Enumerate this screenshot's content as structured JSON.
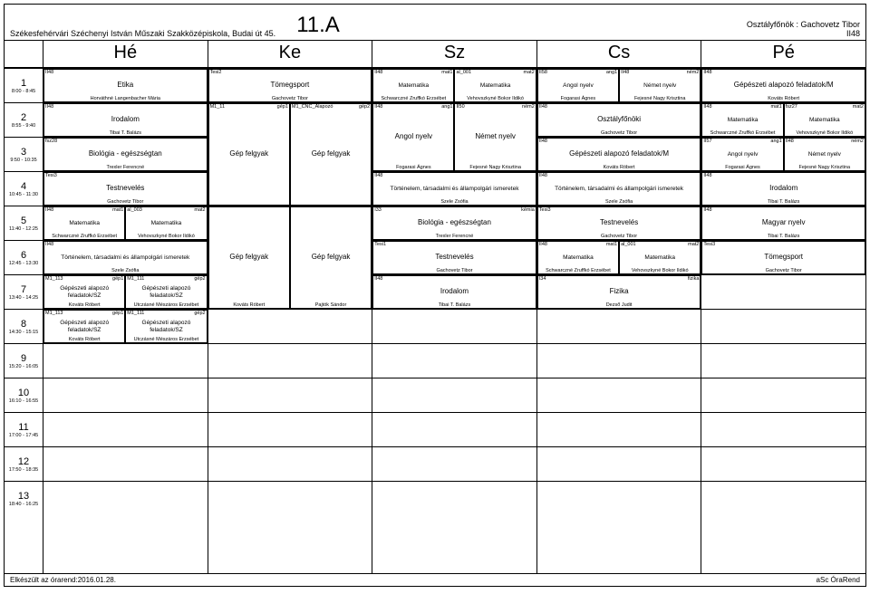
{
  "meta": {
    "school": "Székesfehérvári Széchenyi István Műszaki Szakközépiskola, Budai út 45.",
    "class_title": "11.A",
    "form_teacher_lbl": "Osztályfőnök :",
    "form_teacher": "Gachovetz Tibor",
    "form_room": "II48",
    "footer_left": "Elkészült az órarend:2016.01.28.",
    "footer_right": "aSc ÓraRend"
  },
  "days": [
    "Hé",
    "Ke",
    "Sz",
    "Cs",
    "Pé"
  ],
  "periods": [
    {
      "n": "1",
      "t": "8:00 - 8:45"
    },
    {
      "n": "2",
      "t": "8:55 - 9:40"
    },
    {
      "n": "3",
      "t": "9:50 - 10:35"
    },
    {
      "n": "4",
      "t": "10:45 - 11:30"
    },
    {
      "n": "5",
      "t": "11:40 - 12:25"
    },
    {
      "n": "6",
      "t": "12:45 - 13:30"
    },
    {
      "n": "7",
      "t": "13:40 - 14:25"
    },
    {
      "n": "8",
      "t": "14:30 - 15:15"
    },
    {
      "n": "9",
      "t": "15:20 - 16:05"
    },
    {
      "n": "10",
      "t": "16:10 - 16:55"
    },
    {
      "n": "11",
      "t": "17:00 - 17:45"
    },
    {
      "n": "12",
      "t": "17:50 - 18:35"
    },
    {
      "n": "13",
      "t": "18:40 - 16:25"
    }
  ],
  "rooms": {
    "ii48": "II48",
    "fsz28": "fsz28",
    "tesi3": "Tesi3",
    "mat1": "mat1",
    "al003": "al_003",
    "mat2": "mat2",
    "m1_113": "M1_113",
    "gep1": "gép1",
    "m1_111": "M1_111",
    "gep2": "gép2",
    "tesi2": "Tesi2",
    "m1_11": "M1_11",
    "m1cnc": "M1_CNC_Alapozó",
    "al001": "al_001",
    "ang1": "ang1",
    "ii50": "II50",
    "nem2": "ném2",
    "ii58": "II58",
    "ii57": "II57",
    "fsz27": "fsz27",
    "tesi1": "Tesi1",
    "i33": "I33",
    "i34": "I34"
  },
  "subjects": {
    "etika": "Etika",
    "irodalom": "Irodalom",
    "bio": "Biológia - egészségtan",
    "testnev": "Testnevelés",
    "matek": "Matematika",
    "tort": "Történelem, társadalmi és állampolgári ismeretek",
    "gep_sz": "Gépészeti alapozó feladatok/SZ",
    "tomeg": "Tömegsport",
    "gepfelgyak": "Gép felgyak",
    "angol": "Angol nyelv",
    "nemet": "Német nyelv",
    "of": "Osztályfőnöki",
    "gep_m": "Gépészeti alapozó feladatok/M",
    "kemia": "kémia",
    "magyar": "Magyar nyelv",
    "fizika": "Fizika",
    "fiz2": "fizika"
  },
  "teachers": {
    "horv": "Horváthné Langenbacher Mária",
    "tibai": "Tibai T. Balázs",
    "trexler": "Trexler Ferencné",
    "gach": "Gachovetz Tibor",
    "schw": "Schwarczné Zruffkó Erzsébet",
    "vehov": "Vehovszkyné Bokor Ildikó",
    "szele": "Szele Zsófia",
    "kovats": "Kováts Róbert",
    "utcz": "Utczásné Mészáros Erzsébet",
    "fogarasi": "Fogarasi Ágnes",
    "fejes": "Fejesné Nagy Krisztina",
    "pajtok": "Pajtók Sándor",
    "dezso": "Dezső Judit"
  }
}
